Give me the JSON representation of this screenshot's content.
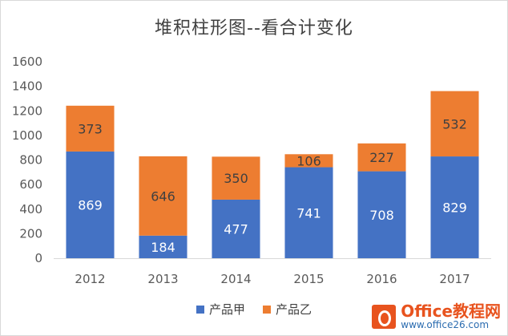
{
  "chart_data": {
    "type": "bar",
    "stacked": true,
    "title": "堆积柱形图--看合计变化",
    "categories": [
      "2012",
      "2013",
      "2014",
      "2015",
      "2016",
      "2017"
    ],
    "series": [
      {
        "name": "产品甲",
        "color": "#4472c4",
        "values": [
          869,
          184,
          477,
          741,
          708,
          829
        ]
      },
      {
        "name": "产品乙",
        "color": "#ed7d31",
        "values": [
          373,
          646,
          350,
          106,
          227,
          532
        ]
      }
    ],
    "ylim": [
      0,
      1600
    ],
    "yticks": [
      0,
      200,
      400,
      600,
      800,
      1000,
      1200,
      1400,
      1600
    ],
    "grid": false,
    "legend_position": "bottom"
  },
  "watermark": {
    "brand": "Office教程网",
    "url": "www.office26.com"
  }
}
